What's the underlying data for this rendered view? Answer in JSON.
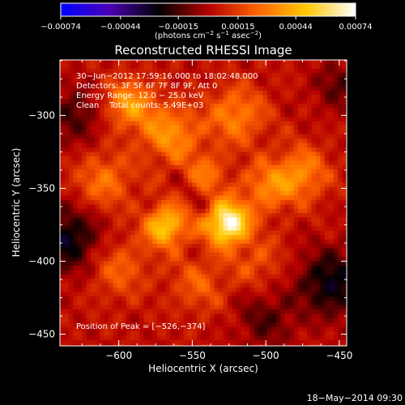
{
  "chart_data": {
    "type": "heatmap",
    "title": "Reconstructed RHESSI Image",
    "xlabel": "Heliocentric X (arcsec)",
    "ylabel": "Heliocentric Y (arcsec)",
    "xlim": [
      -640,
      -445
    ],
    "ylim": [
      -458,
      -262
    ],
    "x_ticks": [
      -600,
      -550,
      -500,
      -450
    ],
    "y_ticks": [
      -300,
      -350,
      -400,
      -450
    ],
    "x_tick_labels": [
      "−600",
      "−550",
      "−500",
      "−450"
    ],
    "y_tick_labels": [
      "−300",
      "−350",
      "−400",
      "−450"
    ],
    "colorbar": {
      "ticks": [
        -0.00074,
        -0.00044,
        -0.00015,
        0.00015,
        0.00044,
        0.00074
      ],
      "tick_labels": [
        "−0.00074",
        "−0.00044",
        "−0.00015",
        "0.00015",
        "0.00044",
        "0.00074"
      ],
      "range": [
        -0.00074,
        0.00074
      ],
      "unit_prefix": "(photons cm",
      "unit_exp1": "−2",
      "unit_mid": " s",
      "unit_exp2": "−1",
      "unit_mid2": " asec",
      "unit_exp3": "−2",
      "unit_suffix": ")",
      "colormap": [
        "#0000ff",
        "#4b00b4",
        "#000000",
        "#b40000",
        "#ff6400",
        "#ffc800",
        "#ffffff"
      ]
    },
    "annotations": [
      "30−Jun−2012 17:59:16.000 to 18:02:48.000",
      "Detectors: 3F 5F 6F 7F 8F 9F, Att 0",
      "Energy Range: 12.0 − 25.0 keV",
      "Clean    Total counts: 5.49E+03"
    ],
    "peak_label": "Position of Peak = [−526,−374]",
    "peak": {
      "x": -526,
      "y": -374,
      "value": 0.00074
    },
    "sources": [
      {
        "x": -526,
        "y": -374,
        "sigma": 10,
        "amp": 0.00074
      },
      {
        "x": -568,
        "y": -376,
        "sigma": 10,
        "amp": 0.0005
      },
      {
        "x": -593,
        "y": -292,
        "sigma": 12,
        "amp": 0.00034
      },
      {
        "x": -565,
        "y": -313,
        "sigma": 14,
        "amp": 0.00032
      },
      {
        "x": -520,
        "y": -300,
        "sigma": 14,
        "amp": 0.00028
      },
      {
        "x": -500,
        "y": -350,
        "sigma": 12,
        "amp": 0.00026
      },
      {
        "x": -476,
        "y": -340,
        "sigma": 13,
        "amp": 0.0003
      },
      {
        "x": -610,
        "y": -345,
        "sigma": 14,
        "amp": 0.00024
      },
      {
        "x": -600,
        "y": -405,
        "sigma": 14,
        "amp": 0.0002
      },
      {
        "x": -545,
        "y": -415,
        "sigma": 14,
        "amp": 0.00018
      },
      {
        "x": -505,
        "y": -400,
        "sigma": 12,
        "amp": 0.00016
      },
      {
        "x": -540,
        "y": -340,
        "sigma": 10,
        "amp": 0.00022
      }
    ],
    "negative_regions": [
      {
        "x": -635,
        "y": -385,
        "sigma": 16,
        "amp": -0.0003
      },
      {
        "x": -455,
        "y": -415,
        "sigma": 16,
        "amp": -0.0003
      },
      {
        "x": -630,
        "y": -300,
        "sigma": 14,
        "amp": -0.00018
      },
      {
        "x": -450,
        "y": -280,
        "sigma": 12,
        "amp": -0.00016
      },
      {
        "x": -500,
        "y": -440,
        "sigma": 14,
        "amp": -0.00016
      }
    ]
  },
  "footer": {
    "timestamp": "18−May−2014 09:30"
  },
  "colors": {
    "background": "#000000",
    "text": "#ffffff"
  }
}
